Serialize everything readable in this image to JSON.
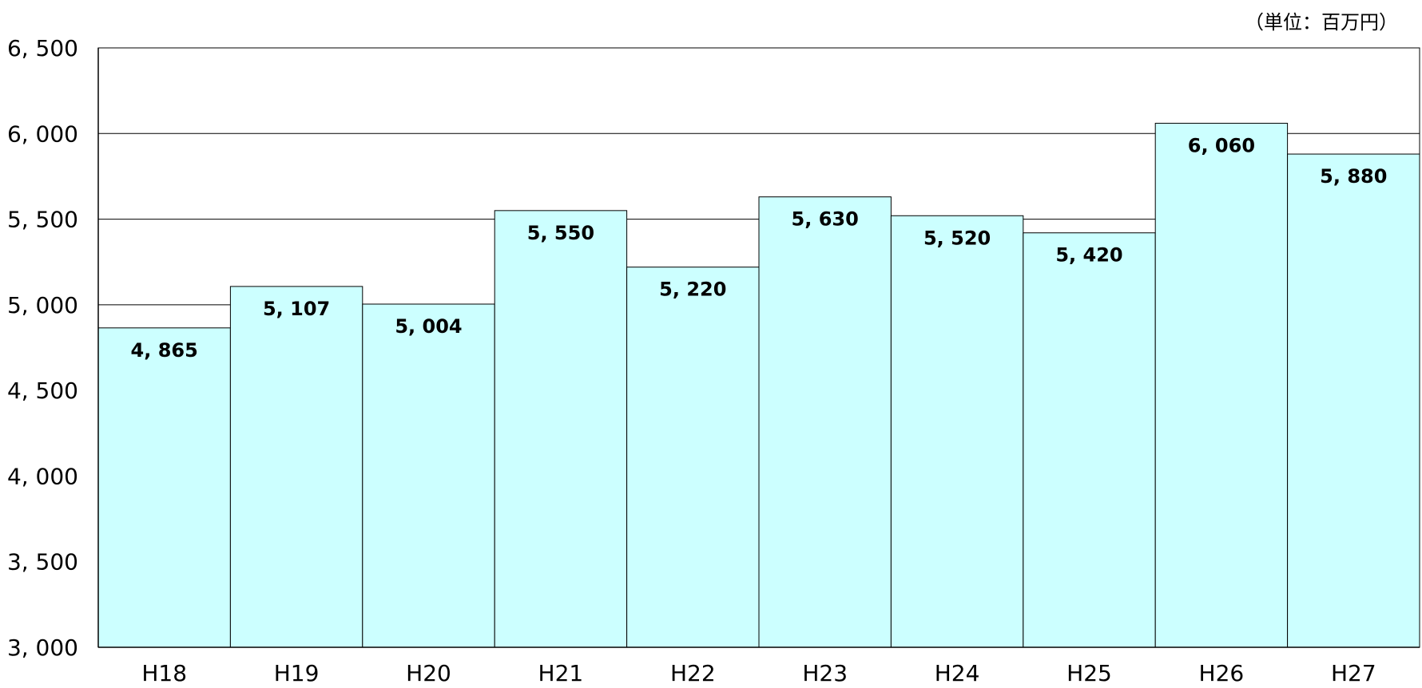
{
  "unit_label": "（単位：百万円）",
  "chart_data": {
    "type": "bar",
    "categories": [
      "H18",
      "H19",
      "H20",
      "H21",
      "H22",
      "H23",
      "H24",
      "H25",
      "H26",
      "H27"
    ],
    "values": [
      4865,
      5107,
      5004,
      5550,
      5220,
      5630,
      5520,
      5420,
      6060,
      5880
    ],
    "data_labels": [
      "4, 865",
      "5, 107",
      "5, 004",
      "5, 550",
      "5, 220",
      "5, 630",
      "5, 520",
      "5, 420",
      "6, 060",
      "5, 880"
    ],
    "y_ticks": [
      3000,
      3500,
      4000,
      4500,
      5000,
      5500,
      6000,
      6500
    ],
    "y_tick_labels": [
      "3, 000",
      "3, 500",
      "4, 000",
      "4, 500",
      "5, 000",
      "5, 500",
      "6, 000",
      "6, 500"
    ],
    "ylim": [
      3000,
      6500
    ],
    "title": "",
    "xlabel": "",
    "ylabel": "",
    "grid": true,
    "bar_color": "#ccffff",
    "bar_border_color": "#000000",
    "grid_color": "#000000"
  }
}
